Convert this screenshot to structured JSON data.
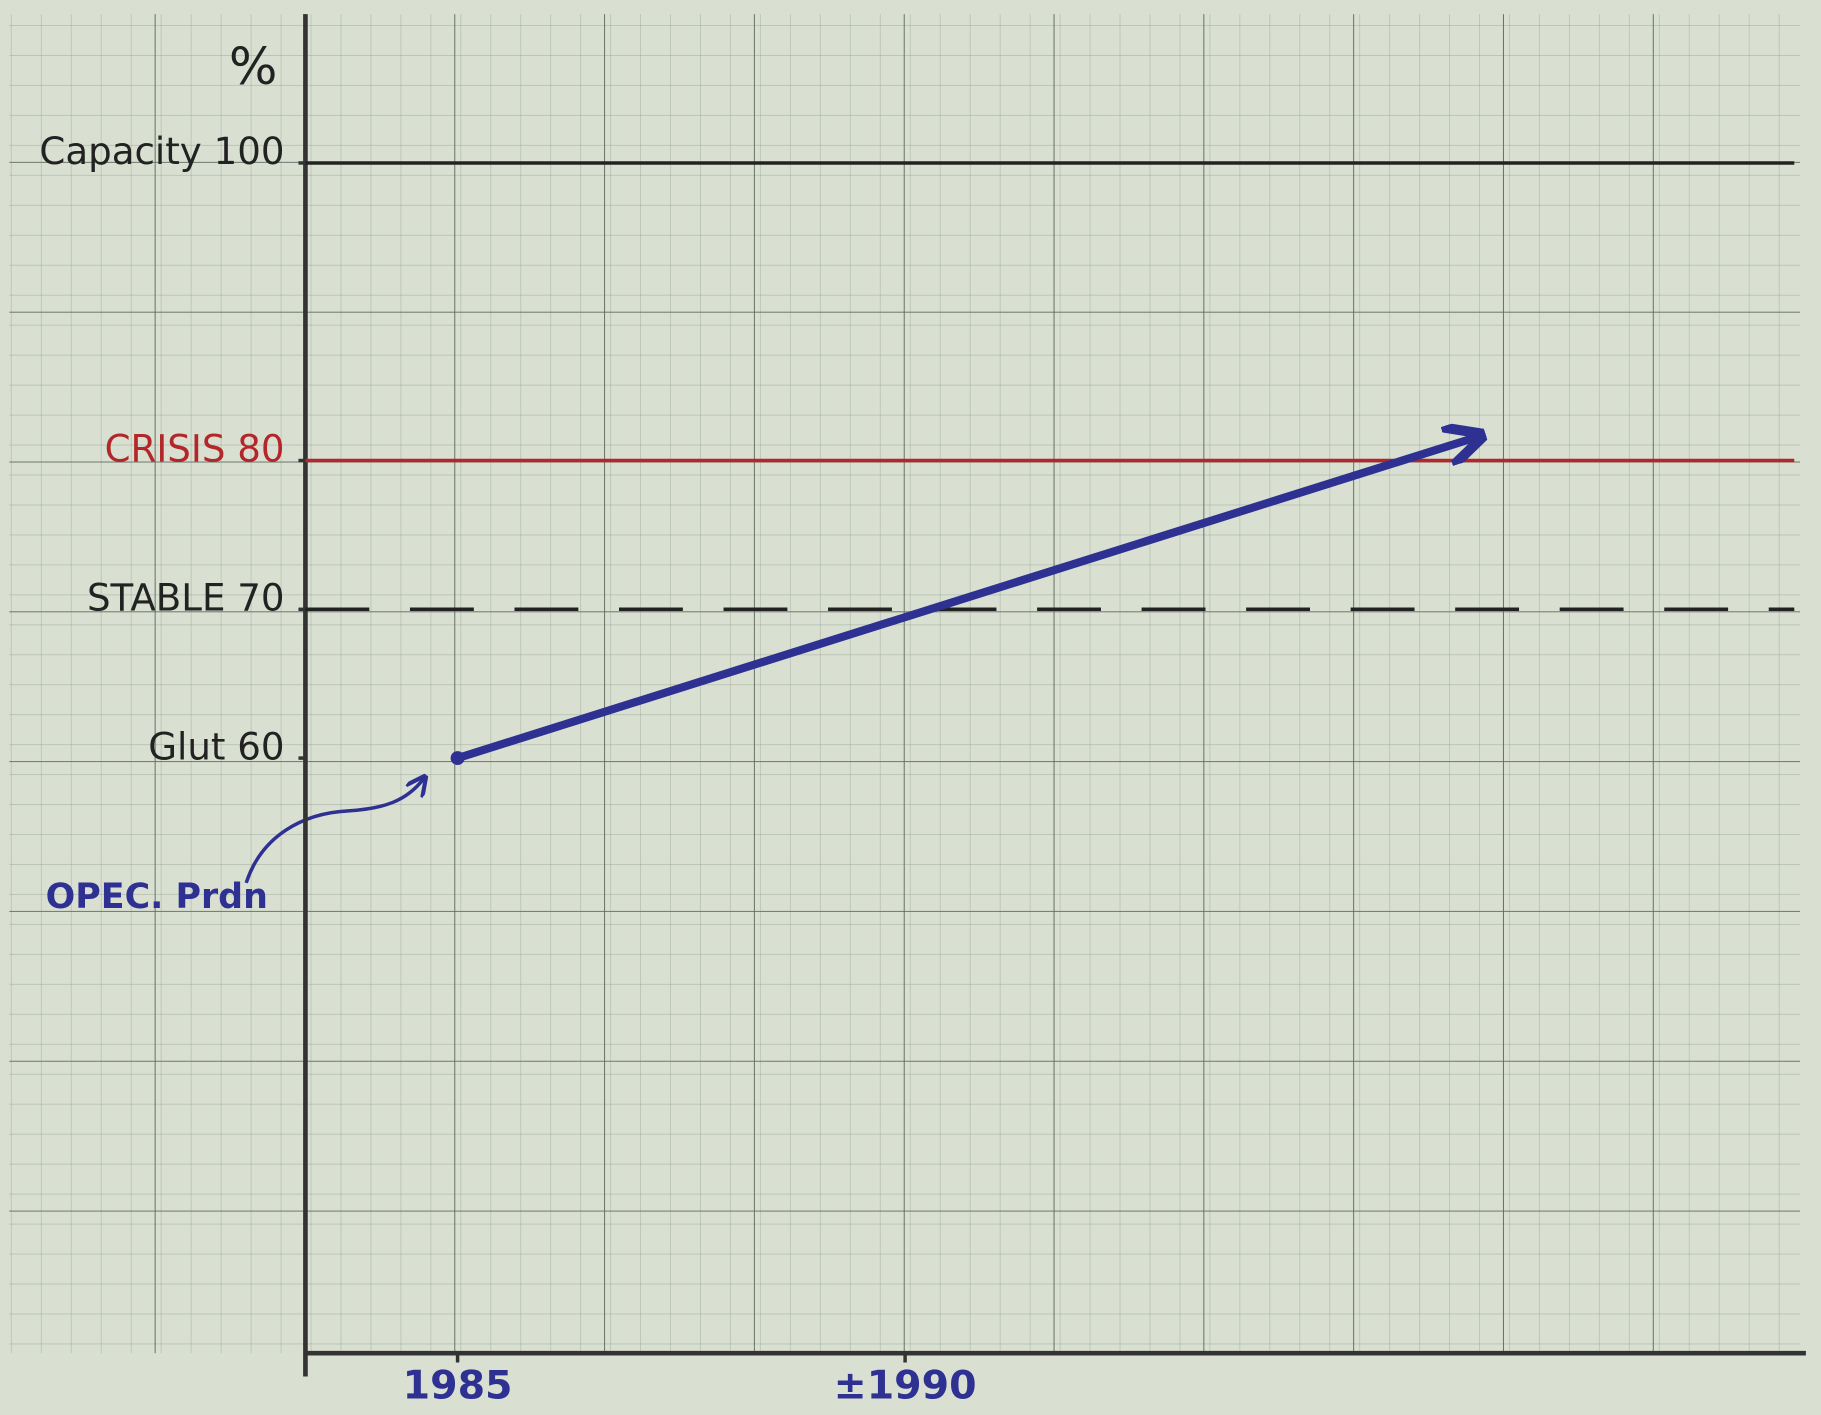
{
  "chart_data": {
    "type": "line",
    "title": "%",
    "x": [
      1985,
      1996.4
    ],
    "series": [
      {
        "color": "#2e3192",
        "values": [
          60,
          81.6
        ]
      }
    ],
    "xlim": [
      1983.3,
      2000
    ],
    "xticks": [
      1985,
      {
        "value": 1990,
        "label": "±1990"
      }
    ],
    "ylim": [
      20,
      110
    ],
    "yticks": [
      {
        "value": 100,
        "label": "Capacity 100",
        "color": "#222222",
        "line": "solid"
      },
      {
        "value": 80,
        "label": "CRISIS 80",
        "color": "#b3272a",
        "line": "solid"
      },
      {
        "value": 70,
        "label": "STABLE 70",
        "color": "#222222",
        "line": "dashed"
      },
      {
        "value": 60,
        "label": "Glut 60",
        "color": "#222222",
        "line": "none"
      }
    ],
    "annotation": "OPEC. Prdn",
    "grid": true
  }
}
